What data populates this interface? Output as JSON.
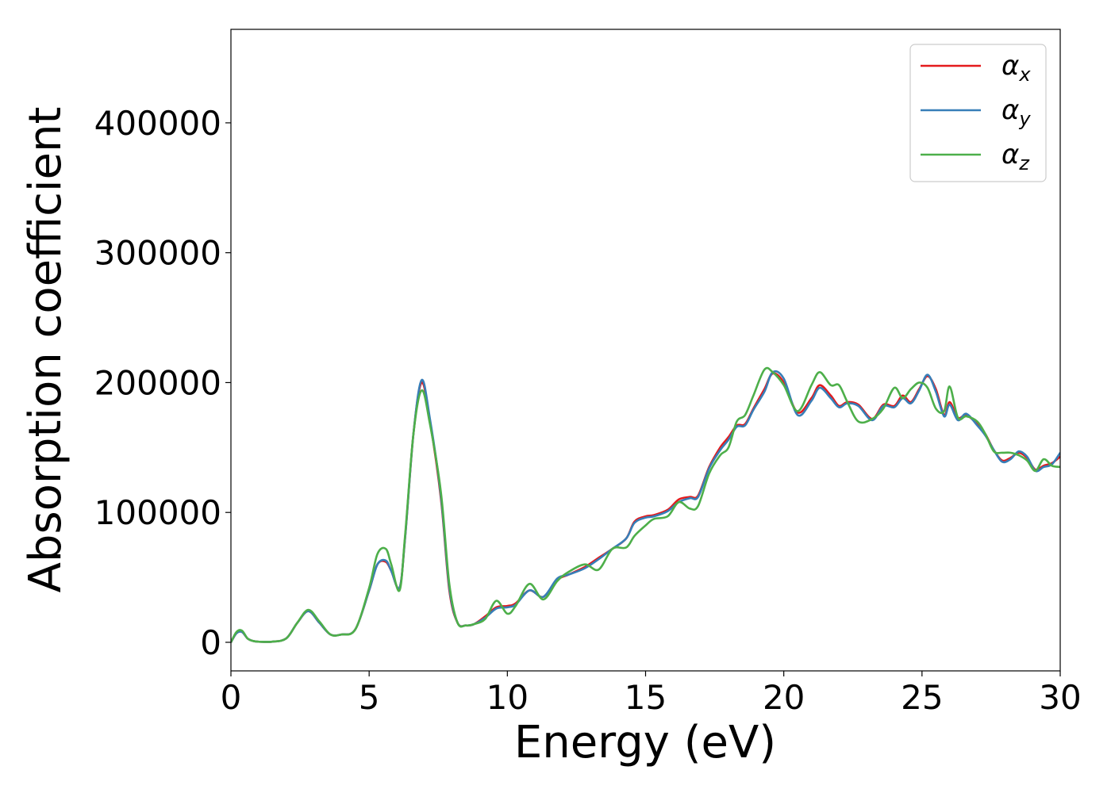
{
  "chart_data": {
    "type": "line",
    "title": "",
    "xlabel": "Energy (eV)",
    "ylabel": "Absorption coefficient",
    "xlim": [
      0,
      30
    ],
    "ylim": [
      -22000,
      472000
    ],
    "xticks": [
      0,
      5,
      10,
      15,
      20,
      25,
      30
    ],
    "xtick_labels": [
      "0",
      "5",
      "10",
      "15",
      "20",
      "25",
      "30"
    ],
    "yticks": [
      0,
      100000,
      200000,
      300000,
      400000
    ],
    "ytick_labels": [
      "0",
      "100000",
      "200000",
      "300000",
      "400000"
    ],
    "grid": false,
    "legend_position": "top-right",
    "series": [
      {
        "name": "α_x",
        "label_main": "α",
        "label_sub": "x",
        "color": "#e41a1c",
        "x": [
          0,
          0.2,
          0.4,
          0.6,
          0.8,
          1,
          1.5,
          2,
          2.4,
          2.8,
          3.2,
          3.6,
          4,
          4.5,
          5,
          5.3,
          5.6,
          5.8,
          6.1,
          6.3,
          6.6,
          6.9,
          7.2,
          7.6,
          7.9,
          8.2,
          8.5,
          8.8,
          9.2,
          9.6,
          10,
          10.3,
          10.8,
          11.3,
          11.8,
          12.2,
          12.8,
          13.3,
          13.8,
          14.3,
          14.6,
          15,
          15.3,
          15.8,
          16.2,
          16.6,
          16.9,
          17.3,
          17.7,
          18,
          18.3,
          18.6,
          18.9,
          19.3,
          19.6,
          20,
          20.5,
          21,
          21.3,
          21.7,
          22,
          22.3,
          22.7,
          23.2,
          23.6,
          24,
          24.3,
          24.6,
          24.9,
          25.2,
          25.5,
          25.8,
          26,
          26.3,
          26.6,
          27,
          27.3,
          27.6,
          27.9,
          28.2,
          28.5,
          28.8,
          29.1,
          29.4,
          29.7,
          30
        ],
        "y": [
          0,
          7000,
          8000,
          3000,
          1000,
          500,
          500,
          3000,
          15000,
          24000,
          15000,
          6000,
          6000,
          10000,
          40000,
          60000,
          62000,
          55000,
          42000,
          80000,
          160000,
          200000,
          170000,
          110000,
          40000,
          15000,
          13000,
          14000,
          20000,
          27000,
          28000,
          30000,
          40000,
          35000,
          48000,
          52000,
          58000,
          65000,
          72000,
          80000,
          93000,
          97000,
          98000,
          102000,
          110000,
          112000,
          113000,
          135000,
          150000,
          158000,
          167000,
          168000,
          180000,
          195000,
          207000,
          200000,
          177000,
          188000,
          198000,
          190000,
          182000,
          185000,
          183000,
          172000,
          183000,
          182000,
          190000,
          185000,
          195000,
          205000,
          195000,
          175000,
          185000,
          173000,
          175000,
          168000,
          160000,
          148000,
          140000,
          142000,
          146000,
          142000,
          133000,
          136000,
          138000,
          143000
        ]
      },
      {
        "name": "α_y",
        "label_main": "α",
        "label_sub": "y",
        "color": "#377eb8",
        "x": [
          0,
          0.2,
          0.4,
          0.6,
          0.8,
          1,
          1.5,
          2,
          2.4,
          2.8,
          3.2,
          3.6,
          4,
          4.5,
          5,
          5.3,
          5.6,
          5.8,
          6.1,
          6.3,
          6.6,
          6.9,
          7.2,
          7.6,
          7.9,
          8.2,
          8.5,
          8.8,
          9.2,
          9.6,
          10,
          10.3,
          10.8,
          11.3,
          11.8,
          12.2,
          12.8,
          13.3,
          13.8,
          14.3,
          14.6,
          15,
          15.3,
          15.8,
          16.2,
          16.6,
          16.9,
          17.3,
          17.7,
          18,
          18.3,
          18.6,
          18.9,
          19.3,
          19.6,
          20,
          20.5,
          21,
          21.3,
          21.7,
          22,
          22.3,
          22.7,
          23.2,
          23.6,
          24,
          24.3,
          24.6,
          24.9,
          25.2,
          25.5,
          25.8,
          26,
          26.3,
          26.6,
          27,
          27.3,
          27.6,
          27.9,
          28.2,
          28.5,
          28.8,
          29.1,
          29.4,
          29.7,
          30
        ],
        "y": [
          0,
          7000,
          8000,
          3000,
          1000,
          500,
          500,
          3000,
          15000,
          24000,
          15000,
          6000,
          6000,
          10000,
          40000,
          60000,
          63000,
          55000,
          42000,
          80000,
          160000,
          202000,
          172000,
          112000,
          42000,
          15000,
          13000,
          14000,
          19000,
          26000,
          27000,
          29000,
          40000,
          35000,
          49000,
          52000,
          57000,
          64000,
          72000,
          80000,
          92000,
          96000,
          97000,
          101000,
          108000,
          111000,
          112000,
          134000,
          148000,
          156000,
          166000,
          167000,
          179000,
          193000,
          208000,
          203000,
          175000,
          186000,
          196000,
          188000,
          181000,
          184000,
          182000,
          171000,
          182000,
          181000,
          188000,
          184000,
          194000,
          206000,
          193000,
          174000,
          183000,
          171000,
          176000,
          167000,
          159000,
          148000,
          139000,
          141000,
          147000,
          143000,
          132000,
          135000,
          137000,
          146000
        ]
      },
      {
        "name": "α_z",
        "label_main": "α",
        "label_sub": "z",
        "color": "#4daf4a",
        "x": [
          0,
          0.2,
          0.4,
          0.6,
          0.8,
          1,
          1.5,
          2,
          2.4,
          2.8,
          3.2,
          3.6,
          4,
          4.5,
          5,
          5.3,
          5.6,
          5.8,
          6.1,
          6.3,
          6.6,
          6.9,
          7.2,
          7.6,
          7.9,
          8.2,
          8.5,
          8.8,
          9.2,
          9.6,
          10,
          10.3,
          10.8,
          11.3,
          11.8,
          12.2,
          12.8,
          13.3,
          13.8,
          14.3,
          14.6,
          15,
          15.3,
          15.8,
          16.2,
          16.6,
          16.9,
          17.3,
          17.7,
          18,
          18.3,
          18.6,
          18.9,
          19.3,
          19.6,
          20,
          20.5,
          21,
          21.3,
          21.7,
          22,
          22.3,
          22.7,
          23.2,
          23.6,
          24,
          24.3,
          24.6,
          24.9,
          25.2,
          25.5,
          25.8,
          26,
          26.3,
          26.6,
          27,
          27.3,
          27.6,
          27.9,
          28.2,
          28.5,
          28.8,
          29.1,
          29.4,
          29.7,
          30
        ],
        "y": [
          0,
          8000,
          9000,
          3000,
          1000,
          500,
          500,
          3000,
          15000,
          25000,
          16000,
          6000,
          6000,
          10000,
          42000,
          68000,
          72000,
          60000,
          40000,
          82000,
          160000,
          194000,
          168000,
          115000,
          45000,
          15000,
          13000,
          14000,
          18000,
          32000,
          22000,
          28000,
          45000,
          33000,
          47000,
          54000,
          60000,
          56000,
          72000,
          73000,
          82000,
          90000,
          95000,
          97000,
          108000,
          103000,
          105000,
          130000,
          144000,
          150000,
          170000,
          175000,
          190000,
          210000,
          208000,
          198000,
          178000,
          198000,
          208000,
          198000,
          198000,
          185000,
          170000,
          172000,
          180000,
          196000,
          188000,
          195000,
          200000,
          196000,
          180000,
          178000,
          197000,
          173000,
          174000,
          170000,
          160000,
          147000,
          146000,
          146000,
          144000,
          140000,
          132000,
          141000,
          136000,
          135000
        ]
      }
    ]
  }
}
